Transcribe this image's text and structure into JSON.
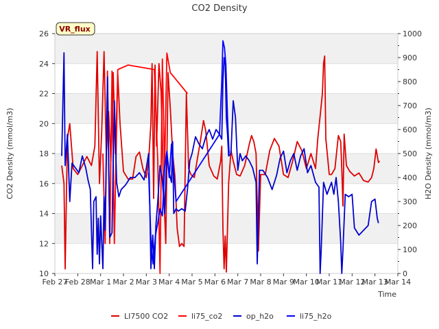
{
  "chart_data": {
    "type": "line",
    "title": "CO2 Density",
    "xlabel": "Time",
    "ylabel_left": "CO2 Density (mmol/m3)",
    "ylabel_right": "H2O Density (mmol/m3)",
    "ylim_left": [
      10,
      26
    ],
    "ylim_right": [
      0,
      1000
    ],
    "xlim_days": [
      0,
      15
    ],
    "x_tick_labels": [
      "Feb 27",
      "Feb 28",
      "Mar 1",
      "Mar 2",
      "Mar 3",
      "Mar 4",
      "Mar 5",
      "Mar 6",
      "Mar 7",
      "Mar 8",
      "Mar 9",
      "Mar 10",
      "Mar 11",
      "Mar 12",
      "Mar 13",
      "Mar 14"
    ],
    "y_left_ticks": [
      "10",
      "12",
      "14",
      "16",
      "18",
      "20",
      "22",
      "24",
      "26"
    ],
    "y_right_ticks": [
      "0",
      "100",
      "200",
      "300",
      "400",
      "500",
      "600",
      "700",
      "800",
      "900",
      "1000"
    ],
    "annotation_box": "VR_flux",
    "legend": [
      {
        "name": "LI7500 CO2",
        "color": "#dd0000"
      },
      {
        "name": "li75_co2",
        "color": "#ff0000"
      },
      {
        "name": "op_h2o",
        "color": "#0000cc"
      },
      {
        "name": "li75_h2o",
        "color": "#0000ff"
      }
    ],
    "series": [
      {
        "name": "LI7500 CO2",
        "axis": "left",
        "color": "#dd0000",
        "points": [
          [
            0.3,
            17.2
          ],
          [
            0.4,
            16.0
          ],
          [
            0.45,
            10.3
          ],
          [
            0.55,
            19.0
          ],
          [
            0.65,
            20.0
          ],
          [
            0.8,
            17.0
          ],
          [
            1.0,
            16.6
          ],
          [
            1.2,
            17.2
          ],
          [
            1.4,
            17.8
          ],
          [
            1.6,
            17.2
          ],
          [
            1.75,
            18.5
          ],
          [
            1.85,
            24.8
          ],
          [
            1.95,
            16.0
          ],
          [
            2.05,
            19.5
          ],
          [
            2.15,
            24.8
          ],
          [
            2.25,
            18.0
          ],
          [
            2.35,
            20.8
          ],
          [
            2.45,
            17.5
          ],
          [
            2.55,
            23.4
          ],
          [
            2.65,
            18.0
          ],
          [
            2.75,
            23.3
          ],
          [
            2.85,
            20.0
          ],
          [
            3.0,
            16.8
          ],
          [
            3.2,
            16.3
          ],
          [
            3.4,
            16.3
          ],
          [
            3.55,
            17.8
          ],
          [
            3.7,
            18.1
          ],
          [
            3.85,
            17.0
          ],
          [
            4.0,
            16.4
          ],
          [
            4.1,
            17.5
          ],
          [
            4.2,
            20.0
          ],
          [
            4.25,
            24.0
          ],
          [
            4.32,
            15.0
          ],
          [
            4.38,
            23.9
          ],
          [
            4.45,
            18.5
          ],
          [
            4.55,
            24.0
          ],
          [
            4.65,
            22.0
          ],
          [
            4.75,
            16.0
          ],
          [
            4.85,
            12.0
          ],
          [
            4.95,
            23.4
          ],
          [
            5.05,
            21.0
          ],
          [
            5.15,
            18.0
          ],
          [
            5.25,
            16.5
          ],
          [
            5.35,
            13.0
          ],
          [
            5.45,
            11.8
          ],
          [
            5.55,
            12.0
          ],
          [
            5.65,
            11.8
          ],
          [
            5.75,
            22.0
          ],
          [
            5.85,
            17.0
          ],
          [
            5.95,
            16.6
          ],
          [
            6.1,
            16.4
          ],
          [
            6.25,
            17.8
          ],
          [
            6.35,
            18.7
          ],
          [
            6.5,
            20.2
          ],
          [
            6.6,
            19.5
          ],
          [
            6.75,
            17.2
          ],
          [
            6.95,
            16.5
          ],
          [
            7.1,
            16.3
          ],
          [
            7.25,
            17.5
          ],
          [
            7.3,
            18.5
          ],
          [
            7.35,
            13.0
          ],
          [
            7.4,
            10.3
          ],
          [
            7.45,
            12.5
          ],
          [
            7.5,
            10.1
          ],
          [
            7.6,
            16.0
          ],
          [
            7.7,
            18.2
          ],
          [
            7.8,
            17.5
          ],
          [
            7.95,
            16.6
          ],
          [
            8.1,
            16.5
          ],
          [
            8.3,
            17.2
          ],
          [
            8.5,
            18.6
          ],
          [
            8.6,
            19.2
          ],
          [
            8.7,
            18.8
          ],
          [
            8.8,
            18.0
          ],
          [
            8.9,
            11.5
          ],
          [
            9.0,
            16.6
          ],
          [
            9.2,
            16.6
          ],
          [
            9.4,
            18.2
          ],
          [
            9.6,
            19.0
          ],
          [
            9.8,
            18.5
          ],
          [
            10.0,
            16.6
          ],
          [
            10.2,
            16.4
          ],
          [
            10.4,
            17.5
          ],
          [
            10.6,
            18.8
          ],
          [
            10.8,
            18.2
          ],
          [
            11.0,
            17.0
          ],
          [
            11.2,
            18.0
          ],
          [
            11.4,
            17.0
          ],
          [
            11.5,
            19.0
          ],
          [
            11.6,
            20.5
          ],
          [
            11.7,
            22.0
          ],
          [
            11.75,
            24.0
          ],
          [
            11.8,
            24.5
          ],
          [
            11.85,
            19.0
          ],
          [
            12.0,
            16.6
          ],
          [
            12.1,
            16.6
          ],
          [
            12.25,
            17.0
          ],
          [
            12.4,
            19.2
          ],
          [
            12.5,
            18.8
          ],
          [
            12.55,
            17.0
          ],
          [
            12.6,
            14.5
          ],
          [
            12.65,
            19.3
          ],
          [
            12.75,
            17.2
          ],
          [
            12.9,
            16.8
          ],
          [
            13.1,
            16.5
          ],
          [
            13.3,
            16.7
          ],
          [
            13.5,
            16.2
          ],
          [
            13.7,
            16.1
          ],
          [
            13.85,
            16.4
          ],
          [
            13.95,
            17.0
          ],
          [
            14.05,
            18.3
          ],
          [
            14.15,
            17.4
          ],
          [
            14.2,
            17.5
          ]
        ]
      },
      {
        "name": "li75_co2",
        "axis": "left",
        "color": "#ff0000",
        "points": [
          [
            2.1,
            18.0
          ],
          [
            2.2,
            12.0
          ],
          [
            2.3,
            23.5
          ],
          [
            2.4,
            12.0
          ],
          [
            2.5,
            23.5
          ],
          [
            2.6,
            12.0
          ],
          [
            2.75,
            23.6
          ],
          [
            3.2,
            23.9
          ],
          [
            4.35,
            23.6
          ],
          [
            4.5,
            17.5
          ],
          [
            4.6,
            10.0
          ],
          [
            4.7,
            24.3
          ],
          [
            4.8,
            17.0
          ],
          [
            4.9,
            24.7
          ],
          [
            5.05,
            23.4
          ],
          [
            5.8,
            22.0
          ]
        ]
      },
      {
        "name": "op_h2o",
        "axis": "right",
        "color": "#0000cc",
        "points": [
          [
            0.3,
            490
          ],
          [
            0.4,
            920
          ],
          [
            0.45,
            450
          ],
          [
            0.55,
            580
          ],
          [
            0.65,
            300
          ],
          [
            0.75,
            460
          ],
          [
            0.9,
            440
          ],
          [
            1.05,
            420
          ],
          [
            1.2,
            490
          ],
          [
            1.35,
            440
          ],
          [
            1.45,
            390
          ],
          [
            1.55,
            350
          ],
          [
            1.6,
            180
          ],
          [
            1.65,
            20
          ],
          [
            1.7,
            300
          ],
          [
            1.8,
            320
          ],
          [
            1.85,
            80
          ],
          [
            1.9,
            230
          ],
          [
            1.95,
            40
          ],
          [
            2.0,
            240
          ],
          [
            2.1,
            20
          ],
          [
            2.15,
            320
          ],
          [
            2.2,
            180
          ],
          [
            2.3,
            820
          ],
          [
            2.4,
            150
          ],
          [
            2.5,
            170
          ],
          [
            2.6,
            720
          ],
          [
            2.7,
            380
          ],
          [
            2.8,
            320
          ],
          [
            2.9,
            350
          ],
          [
            3.1,
            370
          ],
          [
            3.3,
            400
          ],
          [
            3.5,
            400
          ],
          [
            3.7,
            420
          ],
          [
            3.9,
            390
          ],
          [
            4.0,
            440
          ],
          [
            4.1,
            500
          ],
          [
            4.15,
            300
          ],
          [
            4.2,
            20
          ],
          [
            4.28,
            160
          ],
          [
            4.35,
            20
          ],
          [
            4.42,
            200
          ],
          [
            4.5,
            300
          ],
          [
            4.6,
            450
          ],
          [
            4.7,
            390
          ],
          [
            4.8,
            250
          ],
          [
            4.9,
            500
          ],
          [
            5.0,
            420
          ],
          [
            5.1,
            380
          ],
          [
            5.15,
            550
          ],
          [
            5.2,
            250
          ],
          [
            5.3,
            270
          ],
          [
            5.4,
            260
          ],
          [
            5.55,
            270
          ],
          [
            5.7,
            260
          ],
          [
            5.8,
            350
          ],
          [
            5.9,
            470
          ],
          [
            6.0,
            500
          ],
          [
            6.15,
            570
          ],
          [
            6.3,
            540
          ],
          [
            6.45,
            520
          ],
          [
            6.6,
            570
          ],
          [
            6.75,
            600
          ],
          [
            6.9,
            560
          ],
          [
            7.05,
            600
          ],
          [
            7.2,
            580
          ],
          [
            7.3,
            560
          ],
          [
            7.35,
            800
          ],
          [
            7.4,
            900
          ],
          [
            7.45,
            870
          ],
          [
            7.5,
            650
          ],
          [
            7.55,
            580
          ],
          [
            7.6,
            490
          ],
          [
            7.7,
            500
          ],
          [
            7.8,
            720
          ],
          [
            7.9,
            650
          ],
          [
            8.0,
            430
          ],
          [
            8.1,
            500
          ],
          [
            8.2,
            470
          ],
          [
            8.35,
            490
          ],
          [
            8.5,
            470
          ],
          [
            8.65,
            440
          ],
          [
            8.8,
            380
          ],
          [
            8.85,
            40
          ],
          [
            8.95,
            430
          ],
          [
            9.1,
            430
          ],
          [
            9.3,
            400
          ],
          [
            9.5,
            350
          ],
          [
            9.7,
            410
          ],
          [
            9.85,
            480
          ],
          [
            10.0,
            510
          ],
          [
            10.15,
            420
          ],
          [
            10.3,
            470
          ],
          [
            10.45,
            500
          ],
          [
            10.6,
            430
          ],
          [
            10.75,
            490
          ],
          [
            10.9,
            520
          ],
          [
            11.05,
            420
          ],
          [
            11.2,
            450
          ],
          [
            11.4,
            380
          ],
          [
            11.55,
            360
          ],
          [
            11.6,
            0
          ],
          [
            11.65,
            100
          ],
          [
            11.75,
            380
          ],
          [
            11.9,
            330
          ],
          [
            12.1,
            380
          ],
          [
            12.2,
            330
          ],
          [
            12.3,
            400
          ],
          [
            12.4,
            300
          ],
          [
            12.5,
            130
          ],
          [
            12.55,
            0
          ],
          [
            12.6,
            100
          ],
          [
            12.7,
            330
          ],
          [
            12.85,
            320
          ],
          [
            13.0,
            330
          ],
          [
            13.1,
            190
          ],
          [
            13.3,
            160
          ],
          [
            13.5,
            180
          ],
          [
            13.7,
            200
          ],
          [
            13.85,
            300
          ],
          [
            14.0,
            310
          ],
          [
            14.1,
            230
          ],
          [
            14.15,
            210
          ]
        ]
      },
      {
        "name": "li75_h2o",
        "axis": "right",
        "color": "#0000ff",
        "points": [
          [
            4.1,
            420
          ],
          [
            4.2,
            140
          ],
          [
            4.3,
            40
          ],
          [
            4.4,
            160
          ],
          [
            4.5,
            210
          ],
          [
            4.6,
            270
          ],
          [
            4.7,
            240
          ],
          [
            4.8,
            440
          ],
          [
            4.9,
            510
          ],
          [
            5.0,
            400
          ],
          [
            5.1,
            540
          ],
          [
            5.3,
            300
          ],
          [
            7.2,
            580
          ],
          [
            7.3,
            800
          ],
          [
            7.35,
            970
          ],
          [
            7.42,
            940
          ],
          [
            7.48,
            870
          ],
          [
            7.55,
            650
          ],
          [
            7.62,
            500
          ]
        ]
      }
    ]
  }
}
